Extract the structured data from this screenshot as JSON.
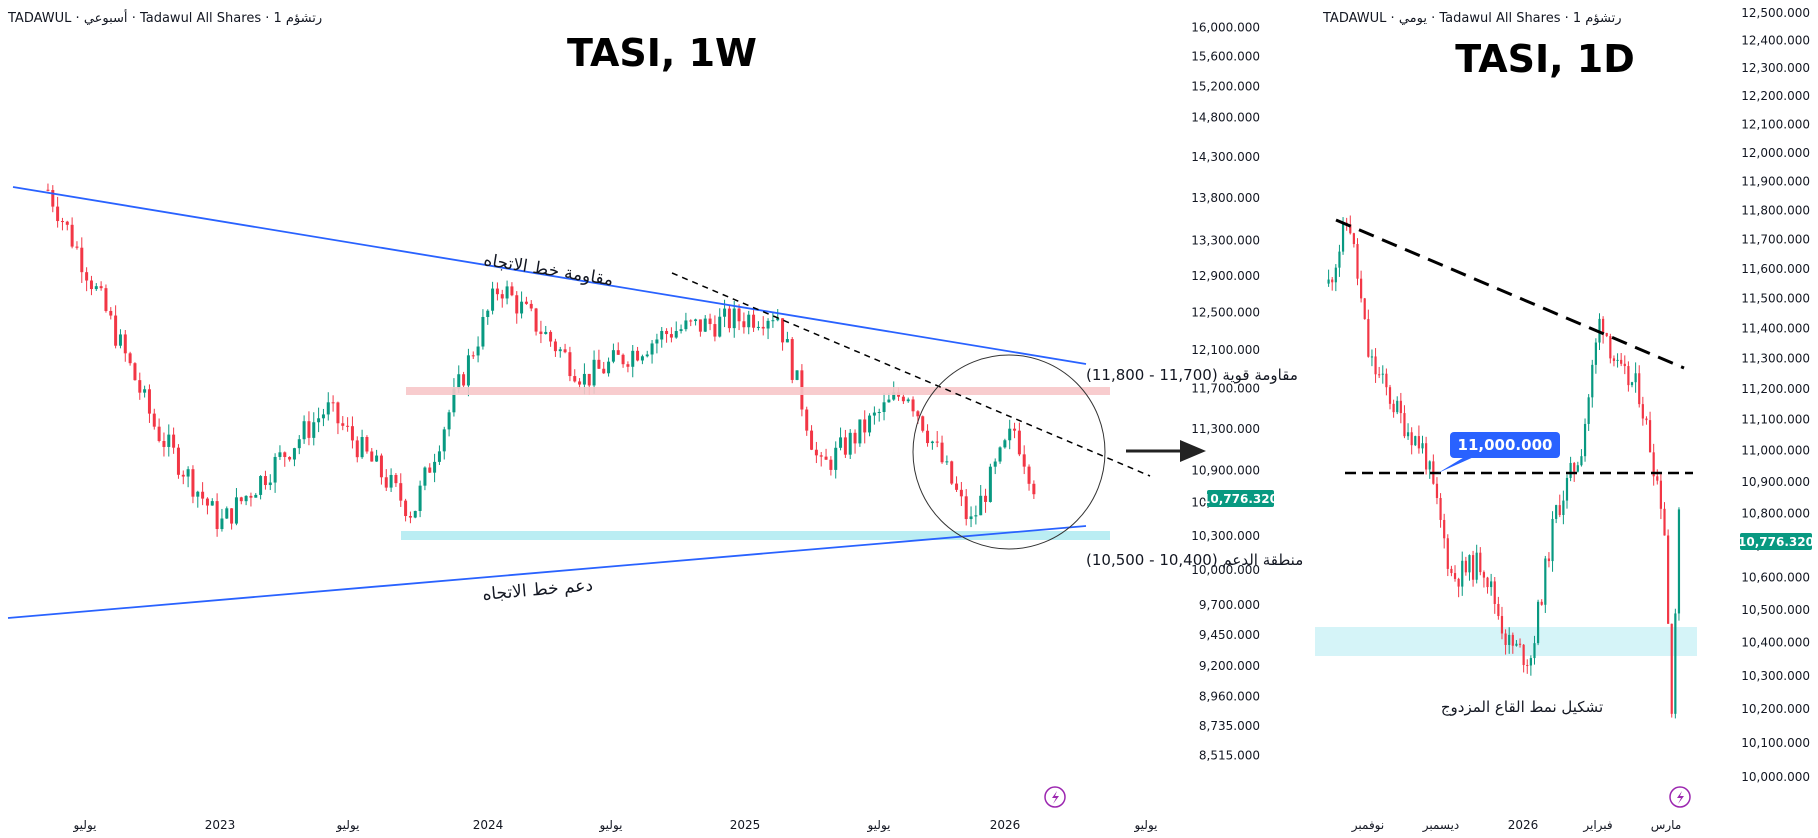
{
  "colors": {
    "up": "#089981",
    "down": "#f23645",
    "trend": "#2962ff",
    "resist": "#f7c6c9",
    "support": "#b2ebf2",
    "tag": "#089981",
    "callout": "#2962ff"
  },
  "left": {
    "header": "TADAWUL · أسبوعي · Tadawul All Shares · 1 رتشؤم",
    "title": "TASI, 1W",
    "annotations": {
      "trend_resistance": "مقاومة خط الاتجاه",
      "trend_support": "دعم خط الاتجاه",
      "strong_resistance": "مقاومة قوية (11,700 - 11,800)",
      "support_zone": "منطقة الدعم (10,400 - 10,500)"
    },
    "price_tag": "10,776.320",
    "icon": "lightning-icon"
  },
  "right": {
    "header": "TADAWUL · يومي · Tadawul All Shares · 1 رتشؤم",
    "title": "TASI, 1D",
    "callout": "11,000.000",
    "pattern": "تشكيل نمط القاع المزدوج",
    "price_tag": "10,776.320",
    "icon": "lightning-icon"
  },
  "chart_data": [
    {
      "type": "candlestick",
      "title": "TASI, 1W",
      "yscale": "log",
      "ylim": [
        8300,
        16200
      ],
      "yticks": [
        "16,000.000",
        "15,600.000",
        "15,200.000",
        "14,800.000",
        "14,300.000",
        "13,800.000",
        "13,300.000",
        "12,900.000",
        "12,500.000",
        "12,100.000",
        "11,700.000",
        "11,300.000",
        "10,900.000",
        "10,600.000",
        "10,300.000",
        "10,000.000",
        "9,700.000",
        "9,450.000",
        "9,200.000",
        "8,960.000",
        "8,735.000",
        "8,515.000"
      ],
      "xticks": [
        "يوليو",
        "2023",
        "يوليو",
        "2024",
        "يوليو",
        "2025",
        "يوليو",
        "2026",
        "يوليو"
      ],
      "resistance_zone": [
        11700,
        11800
      ],
      "support_zone": [
        10400,
        10500
      ],
      "last_close": 10776.32,
      "key_points": [
        {
          "date": "2022-05",
          "close": 13900
        },
        {
          "date": "2022-10",
          "close": 11300
        },
        {
          "date": "2023-01",
          "close": 10400
        },
        {
          "date": "2023-06",
          "close": 11500
        },
        {
          "date": "2023-10",
          "close": 10500
        },
        {
          "date": "2024-02",
          "close": 12800
        },
        {
          "date": "2024-06",
          "close": 11800
        },
        {
          "date": "2024-10",
          "close": 12300
        },
        {
          "date": "2025-03",
          "close": 12500
        },
        {
          "date": "2025-05",
          "close": 10900
        },
        {
          "date": "2025-09",
          "close": 11700
        },
        {
          "date": "2025-12",
          "close": 10400
        },
        {
          "date": "2026-02",
          "close": 11300
        },
        {
          "date": "2026-03",
          "close": 10776
        }
      ]
    },
    {
      "type": "candlestick",
      "title": "TASI, 1D",
      "yscale": "log",
      "ylim": [
        10000,
        12500
      ],
      "yticks": [
        "12,500.000",
        "12,400.000",
        "12,300.000",
        "12,200.000",
        "12,100.000",
        "12,000.000",
        "11,900.000",
        "11,800.000",
        "11,700.000",
        "11,600.000",
        "11,500.000",
        "11,400.000",
        "11,300.000",
        "11,200.000",
        "11,100.000",
        "11,000.000",
        "10,900.000",
        "10,800.000",
        "10,700.000",
        "10,600.000",
        "10,500.000",
        "10,400.000",
        "10,300.000",
        "10,200.000",
        "10,100.000",
        "10,000.000"
      ],
      "xticks": [
        "نوفمبر",
        "ديسمبر",
        "2026",
        "فبراير",
        "مارس"
      ],
      "horizontal_level": 11000,
      "support_zone": [
        10400,
        10500
      ],
      "last_close": 10776.32,
      "key_points": [
        {
          "date": "2025-10-20",
          "close": 11550
        },
        {
          "date": "2025-10-28",
          "close": 11780
        },
        {
          "date": "2025-11-05",
          "close": 11300
        },
        {
          "date": "2025-11-18",
          "close": 11100
        },
        {
          "date": "2025-11-27",
          "close": 11000
        },
        {
          "date": "2025-12-08",
          "close": 10600
        },
        {
          "date": "2025-12-20",
          "close": 10650
        },
        {
          "date": "2025-12-30",
          "close": 10400
        },
        {
          "date": "2026-01-08",
          "close": 10350
        },
        {
          "date": "2026-01-18",
          "close": 10800
        },
        {
          "date": "2026-01-28",
          "close": 11000
        },
        {
          "date": "2026-02-05",
          "close": 11450
        },
        {
          "date": "2026-02-12",
          "close": 11250
        },
        {
          "date": "2026-02-20",
          "close": 11200
        },
        {
          "date": "2026-03-02",
          "close": 10800
        },
        {
          "date": "2026-03-05",
          "close": 10200
        },
        {
          "date": "2026-03-08",
          "close": 10776
        }
      ]
    }
  ]
}
